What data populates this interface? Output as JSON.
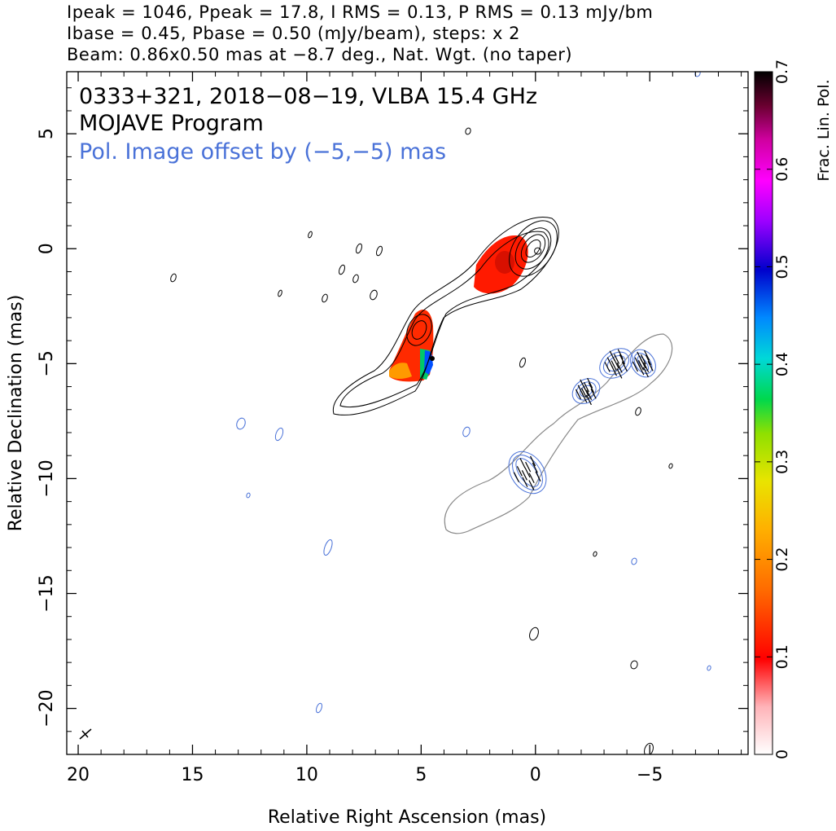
{
  "header": {
    "line1": "Ipeak = 1046, Ppeak = 17.8, I RMS = 0.13, P RMS = 0.13 mJy/bm",
    "line2": "Ibase = 0.45, Pbase = 0.50 (mJy/beam), steps: x 2",
    "line3": "Beam: 0.86x0.50 mas at −8.7 deg., Nat. Wgt. (no taper)"
  },
  "chart_data": {
    "type": "heatmap",
    "title": "0333+321, 2018−08−19, VLBA 15.4 GHz",
    "subtitle": "MOJAVE Program",
    "annotation": "Pol. Image offset by (−5,−5) mas",
    "xlabel": "Relative Right Ascension (mas)",
    "ylabel": "Relative Declination (mas)",
    "xlim": [
      20.5,
      -9.3
    ],
    "ylim": [
      -22.0,
      7.7
    ],
    "x_ticks": [
      20,
      15,
      10,
      5,
      0,
      -5
    ],
    "x_tick_labels": [
      "20",
      "15",
      "10",
      "5",
      "0",
      "−5"
    ],
    "y_ticks": [
      5,
      0,
      -5,
      -10,
      -15,
      -20
    ],
    "y_tick_labels": [
      "5",
      "0",
      "−5",
      "−10",
      "−15",
      "−20"
    ],
    "colorbar": {
      "label": "Frac. Lin. Pol.",
      "range": [
        0,
        0.7
      ],
      "ticks": [
        0,
        0.1,
        0.2,
        0.3,
        0.4,
        0.5,
        0.6,
        0.7
      ],
      "tick_labels": [
        "0",
        "0.1",
        "0.2",
        "0.3",
        "0.4",
        "0.5",
        "0.6",
        "0.7"
      ]
    },
    "core": {
      "x": -0.1,
      "y": -0.1
    },
    "fractional_polarization_regions": [
      {
        "x": 1.8,
        "y": -1.1,
        "value": 0.12
      },
      {
        "x": 4.9,
        "y": -4.2,
        "value": 0.13
      },
      {
        "x": 4.6,
        "y": -5.3,
        "value": 0.45
      }
    ],
    "beam": {
      "major_mas": 0.86,
      "minor_mas": 0.5,
      "pa_deg": -8.7
    },
    "colors": {
      "intensity_contours": "#000000",
      "offset_contours": "#888888",
      "pol_contours": "#4a72d8",
      "annotation": "#4a72d8"
    }
  }
}
